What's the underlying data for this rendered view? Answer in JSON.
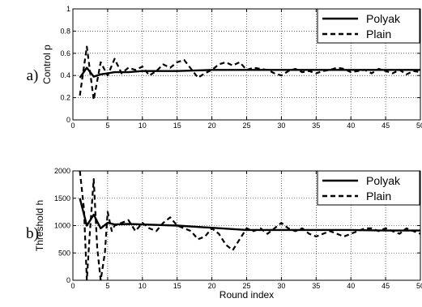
{
  "chart_data": [
    {
      "type": "line",
      "panel_label": "a)",
      "xlabel": "",
      "ylabel": "Control p",
      "xlim": [
        0,
        50
      ],
      "ylim": [
        0,
        1
      ],
      "x_ticks": [
        0,
        5,
        10,
        15,
        20,
        25,
        30,
        35,
        40,
        45,
        50
      ],
      "y_ticks": [
        0,
        0.2,
        0.4,
        0.6,
        0.8,
        1
      ],
      "y_tick_labels": [
        "0",
        "0.2",
        "0.4",
        "0.6",
        "0.8",
        "1"
      ],
      "grid": true,
      "legend_position": "top-right",
      "series": [
        {
          "name": "Polyak",
          "style": "solid",
          "x": [
            1,
            2,
            3,
            4,
            5,
            6,
            8,
            10,
            15,
            20,
            25,
            30,
            35,
            40,
            45,
            50
          ],
          "y": [
            0.38,
            0.47,
            0.39,
            0.41,
            0.42,
            0.43,
            0.43,
            0.44,
            0.44,
            0.45,
            0.45,
            0.45,
            0.45,
            0.45,
            0.45,
            0.45
          ]
        },
        {
          "name": "Plain",
          "style": "dashed",
          "x": [
            1,
            2,
            3,
            4,
            5,
            6,
            7,
            8,
            9,
            10,
            11,
            12,
            13,
            14,
            15,
            16,
            17,
            18,
            19,
            20,
            21,
            22,
            23,
            24,
            25,
            26,
            27,
            28,
            29,
            30,
            31,
            32,
            33,
            34,
            35,
            36,
            37,
            38,
            39,
            40,
            41,
            42,
            43,
            44,
            45,
            46,
            47,
            48,
            49,
            50
          ],
          "y": [
            0.22,
            0.66,
            0.18,
            0.52,
            0.4,
            0.55,
            0.42,
            0.47,
            0.45,
            0.48,
            0.4,
            0.44,
            0.5,
            0.47,
            0.52,
            0.54,
            0.46,
            0.38,
            0.42,
            0.45,
            0.5,
            0.52,
            0.49,
            0.52,
            0.45,
            0.47,
            0.46,
            0.45,
            0.42,
            0.4,
            0.44,
            0.46,
            0.43,
            0.44,
            0.42,
            0.44,
            0.45,
            0.47,
            0.46,
            0.43,
            0.44,
            0.45,
            0.42,
            0.46,
            0.44,
            0.42,
            0.45,
            0.41,
            0.44,
            0.43
          ]
        }
      ]
    },
    {
      "type": "line",
      "panel_label": "b)",
      "xlabel": "Round index",
      "ylabel": "Threshold h",
      "xlim": [
        0,
        50
      ],
      "ylim": [
        0,
        2000
      ],
      "x_ticks": [
        0,
        5,
        10,
        15,
        20,
        25,
        30,
        35,
        40,
        45,
        50
      ],
      "y_ticks": [
        0,
        500,
        1000,
        1500,
        2000
      ],
      "y_tick_labels": [
        "0",
        "500",
        "1000",
        "1500",
        "2000"
      ],
      "grid": true,
      "legend_position": "top-right",
      "series": [
        {
          "name": "Polyak",
          "style": "solid",
          "x": [
            1,
            2,
            3,
            4,
            5,
            6,
            8,
            10,
            15,
            20,
            25,
            30,
            35,
            40,
            45,
            50
          ],
          "y": [
            1500,
            1000,
            1200,
            950,
            1050,
            1020,
            1030,
            1020,
            1000,
            960,
            920,
            920,
            920,
            920,
            910,
            910
          ]
        },
        {
          "name": "Plain",
          "style": "dashed",
          "x": [
            1,
            1.6,
            2,
            2.4,
            3,
            3.5,
            4,
            4.6,
            5,
            5.6,
            6,
            7,
            8,
            9,
            10,
            11,
            12,
            13,
            14,
            15,
            16,
            17,
            18,
            19,
            20,
            21,
            22,
            23,
            24,
            25,
            26,
            27,
            28,
            29,
            30,
            31,
            32,
            33,
            34,
            35,
            36,
            37,
            38,
            39,
            40,
            41,
            42,
            43,
            44,
            45,
            46,
            47,
            48,
            49,
            50
          ],
          "y": [
            2000,
            1300,
            0,
            800,
            1850,
            600,
            0,
            500,
            1250,
            900,
            1000,
            1050,
            1100,
            900,
            1050,
            950,
            900,
            1050,
            1150,
            1000,
            950,
            900,
            750,
            800,
            950,
            850,
            650,
            550,
            750,
            950,
            900,
            950,
            850,
            950,
            1050,
            950,
            900,
            950,
            850,
            800,
            850,
            900,
            850,
            800,
            850,
            900,
            950,
            950,
            900,
            950,
            900,
            850,
            950,
            900,
            850
          ]
        }
      ]
    }
  ]
}
